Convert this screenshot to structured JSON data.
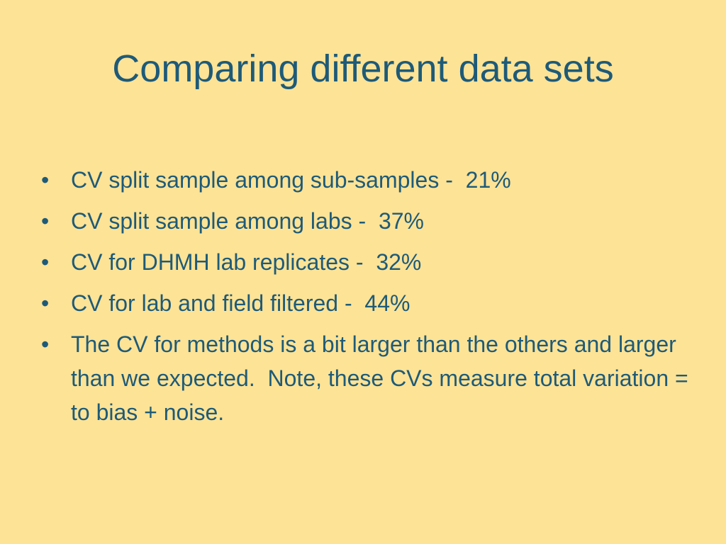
{
  "title": "Comparing different data sets",
  "bullets": [
    "CV split sample among sub-samples -  21%",
    "CV split sample among labs -  37%",
    "CV for DHMH lab replicates -  32%",
    "CV for lab and field filtered -  44%",
    "The CV for methods is a bit larger than the others and larger than we expected.  Note, these CVs measure total variation = to bias + noise."
  ]
}
